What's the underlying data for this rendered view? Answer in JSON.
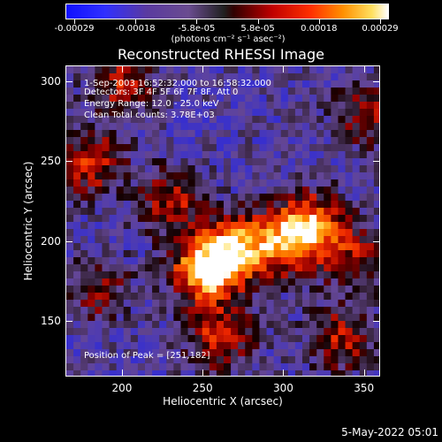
{
  "colorbar": {
    "tick_labels": [
      "-0.00029",
      "-0.00018",
      "-5.8e-05",
      "5.8e-05",
      "0.00018",
      "0.00029"
    ],
    "units": "(photons cm⁻² s⁻¹ asec⁻²)",
    "colors": [
      "#1010ff",
      "#5a3aa0",
      "#202020",
      "#c00000",
      "#ff9000",
      "#ffffff"
    ]
  },
  "chart_data": {
    "type": "heatmap",
    "title": "Reconstructed RHESSI Image",
    "xlabel": "Heliocentric X (arcsec)",
    "ylabel": "Heliocentric Y (arcsec)",
    "xlim": [
      165,
      360
    ],
    "ylim": [
      115,
      310
    ],
    "xticks": [
      200,
      250,
      300,
      350
    ],
    "yticks": [
      150,
      200,
      250,
      300
    ],
    "color_range": [
      -0.00029,
      0.00029
    ],
    "peak_position": [
      251,
      182
    ],
    "sources": [
      {
        "x": 251,
        "y": 182,
        "value": 0.00029
      },
      {
        "x": 270,
        "y": 195,
        "value": 0.00024
      },
      {
        "x": 300,
        "y": 200,
        "value": 0.0002
      },
      {
        "x": 318,
        "y": 210,
        "value": 0.00022
      },
      {
        "x": 230,
        "y": 225,
        "value": 0.00014
      },
      {
        "x": 180,
        "y": 250,
        "value": 0.00016
      },
      {
        "x": 200,
        "y": 300,
        "value": 0.00014
      },
      {
        "x": 350,
        "y": 280,
        "value": 0.00012
      },
      {
        "x": 260,
        "y": 140,
        "value": 0.00016
      },
      {
        "x": 335,
        "y": 140,
        "value": 0.00014
      },
      {
        "x": 185,
        "y": 170,
        "value": 0.0001
      },
      {
        "x": 345,
        "y": 190,
        "value": 0.00012
      }
    ],
    "grid": false
  },
  "info": {
    "time": "1-Sep-2003 16:52:32.000 to 16:58:32.000",
    "detectors": "Detectors: 3F 4F 5F 6F 7F 8F, Att 0",
    "energy": "Energy Range: 12.0 - 25.0 keV",
    "clean": "Clean    Total counts: 3.78E+03",
    "peak": "Position of Peak = [251,182]"
  },
  "date": "5-May-2022 05:01"
}
